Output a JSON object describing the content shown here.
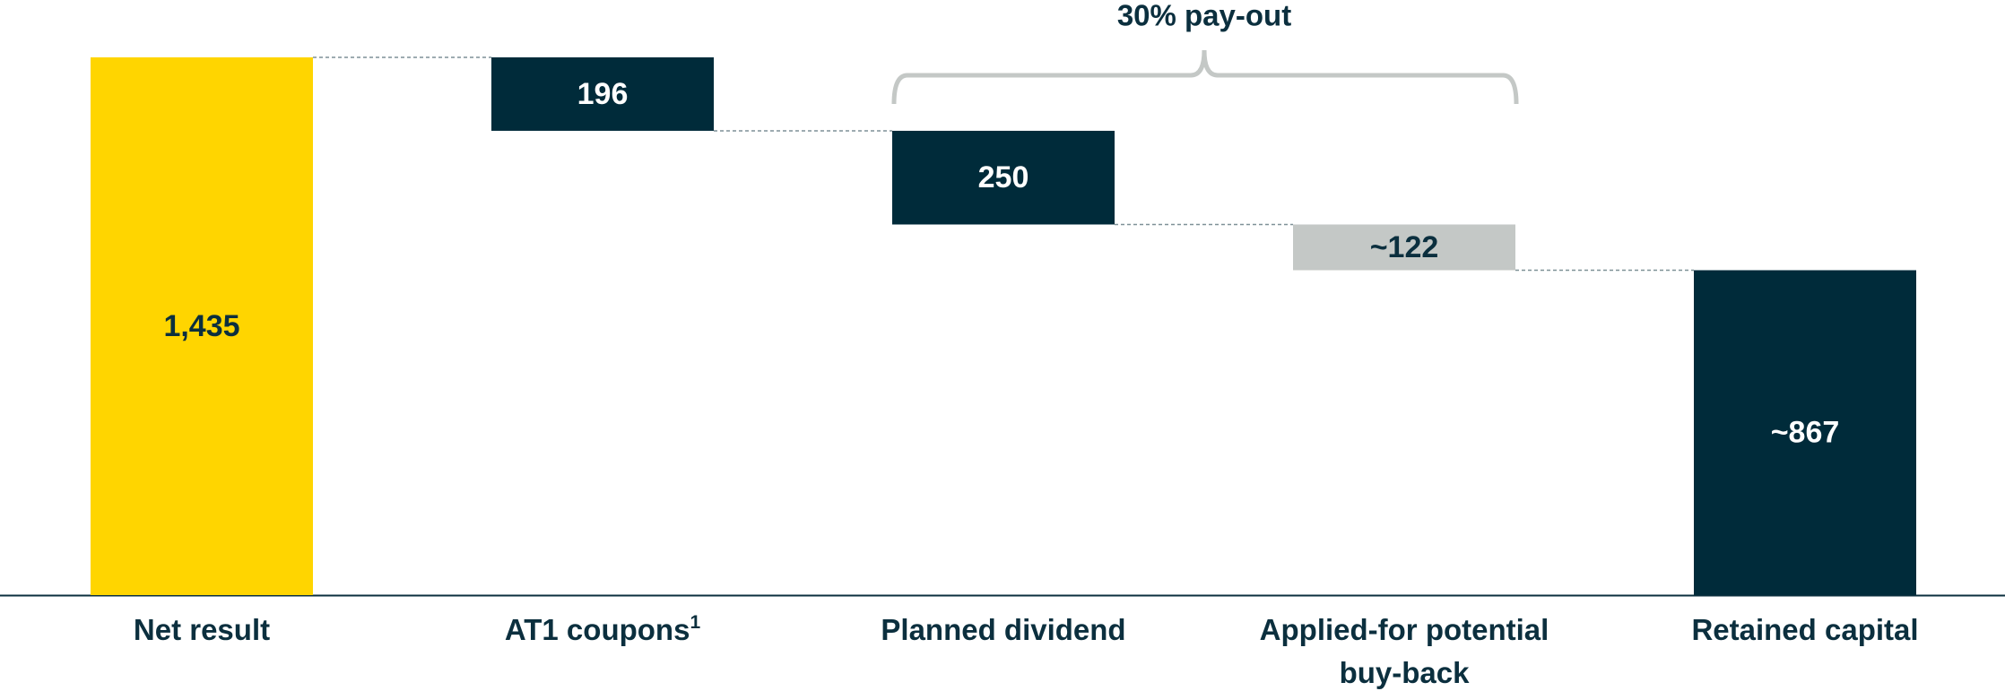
{
  "chart_data": {
    "type": "waterfall",
    "categories": [
      "Net result",
      "AT1 coupons",
      "Planned dividend",
      "Applied-for potential buy-back",
      "Retained capital"
    ],
    "category_notes": [
      null,
      "1",
      null,
      null,
      null
    ],
    "values": [
      1435,
      196,
      250,
      122,
      867
    ],
    "value_labels": [
      "1,435",
      "196",
      "250",
      "~122",
      "~867"
    ],
    "measure": [
      "total",
      "decrease",
      "decrease",
      "decrease",
      "total"
    ],
    "colors": [
      "#ffd500",
      "#002b3a",
      "#002b3a",
      "#c4c8c6",
      "#002b3a"
    ],
    "label_colors": [
      "#0b2f3e",
      "#ffffff",
      "#ffffff",
      "#0b2f3e",
      "#ffffff"
    ],
    "annotation": "30% pay-out"
  }
}
